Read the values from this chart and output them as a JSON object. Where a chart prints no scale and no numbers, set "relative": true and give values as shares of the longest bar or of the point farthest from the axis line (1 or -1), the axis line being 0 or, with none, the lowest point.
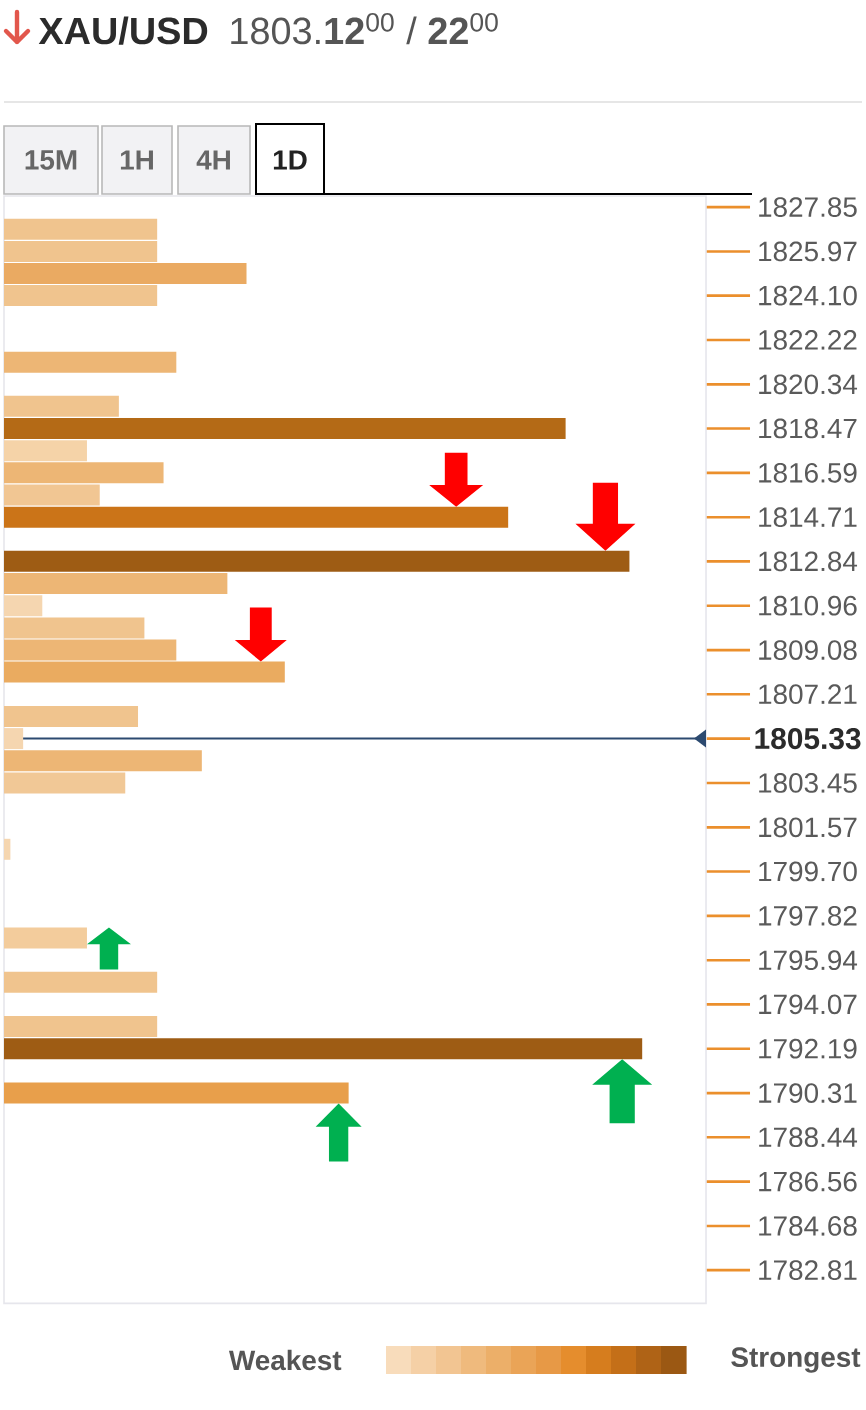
{
  "chart_data": {
    "type": "bar",
    "orientation": "horizontal",
    "relative": true,
    "title": "XAU/USD",
    "subtitle": "1803.**12**$^{00}$ / **22**$^{00}$",
    "x": [
      1826.91,
      1825.97,
      1825.04,
      1824.1,
      1821.28,
      1819.41,
      1818.47,
      1817.53,
      1816.59,
      1815.65,
      1814.71,
      1812.84,
      1811.9,
      1810.96,
      1810.02,
      1809.08,
      1808.15,
      1806.27,
      1805.33,
      1804.39,
      1803.45,
      1800.64,
      1796.88,
      1795.01,
      1793.13,
      1792.19,
      1790.31
    ],
    "values": [
      0.24,
      0.24,
      0.38,
      0.24,
      0.27,
      0.18,
      0.88,
      0.13,
      0.25,
      0.15,
      0.79,
      0.98,
      0.35,
      0.06,
      0.22,
      0.27,
      0.44,
      0.21,
      0.03,
      0.31,
      0.19,
      0.01,
      0.13,
      0.24,
      0.24,
      1,
      0.54
    ],
    "colors": [
      "#f0c48e",
      "#f0c48e",
      "#eaaa62",
      "#f0c48e",
      "#edb675",
      "#f0c48e",
      "#b46a16",
      "#f5d3a8",
      "#edb675",
      "#f1c693",
      "#cb7418",
      "#9e5c14",
      "#edb675",
      "#f5d6b0",
      "#f0c48e",
      "#edb675",
      "#eaab60",
      "#f0c48e",
      "#f5d6b0",
      "#edb675",
      "#f1c896",
      "#f5d6b0",
      "#f3cc9c",
      "#f0c48e",
      "#f0c48e",
      "#9e5c14",
      "#e89f4b"
    ],
    "ylim": [
      1781.4,
      1828.32
    ],
    "yticks": [
      1827.85,
      1825.97,
      {
        "value": 1824.1,
        "label": "1824.10"
      },
      1822.22,
      1820.34,
      1818.47,
      1816.59,
      1814.71,
      1812.84,
      1810.96,
      1809.08,
      1807.21,
      {
        "value": 1805.33,
        "label": null
      },
      1803.45,
      1801.57,
      {
        "value": 1799.7,
        "label": "1799.70"
      },
      1797.82,
      1795.94,
      1794.07,
      1792.19,
      1790.31,
      1788.44,
      1786.56,
      1784.68,
      1782.81
    ],
    "ref_lines": [
      {
        "axis": "y",
        "value": 1805.33,
        "label": "1805.33",
        "color": "#2c4a70"
      }
    ],
    "annotations": [
      "15M",
      "1H",
      "4H",
      "1D",
      "Weakest",
      "Strongest"
    ]
  }
}
